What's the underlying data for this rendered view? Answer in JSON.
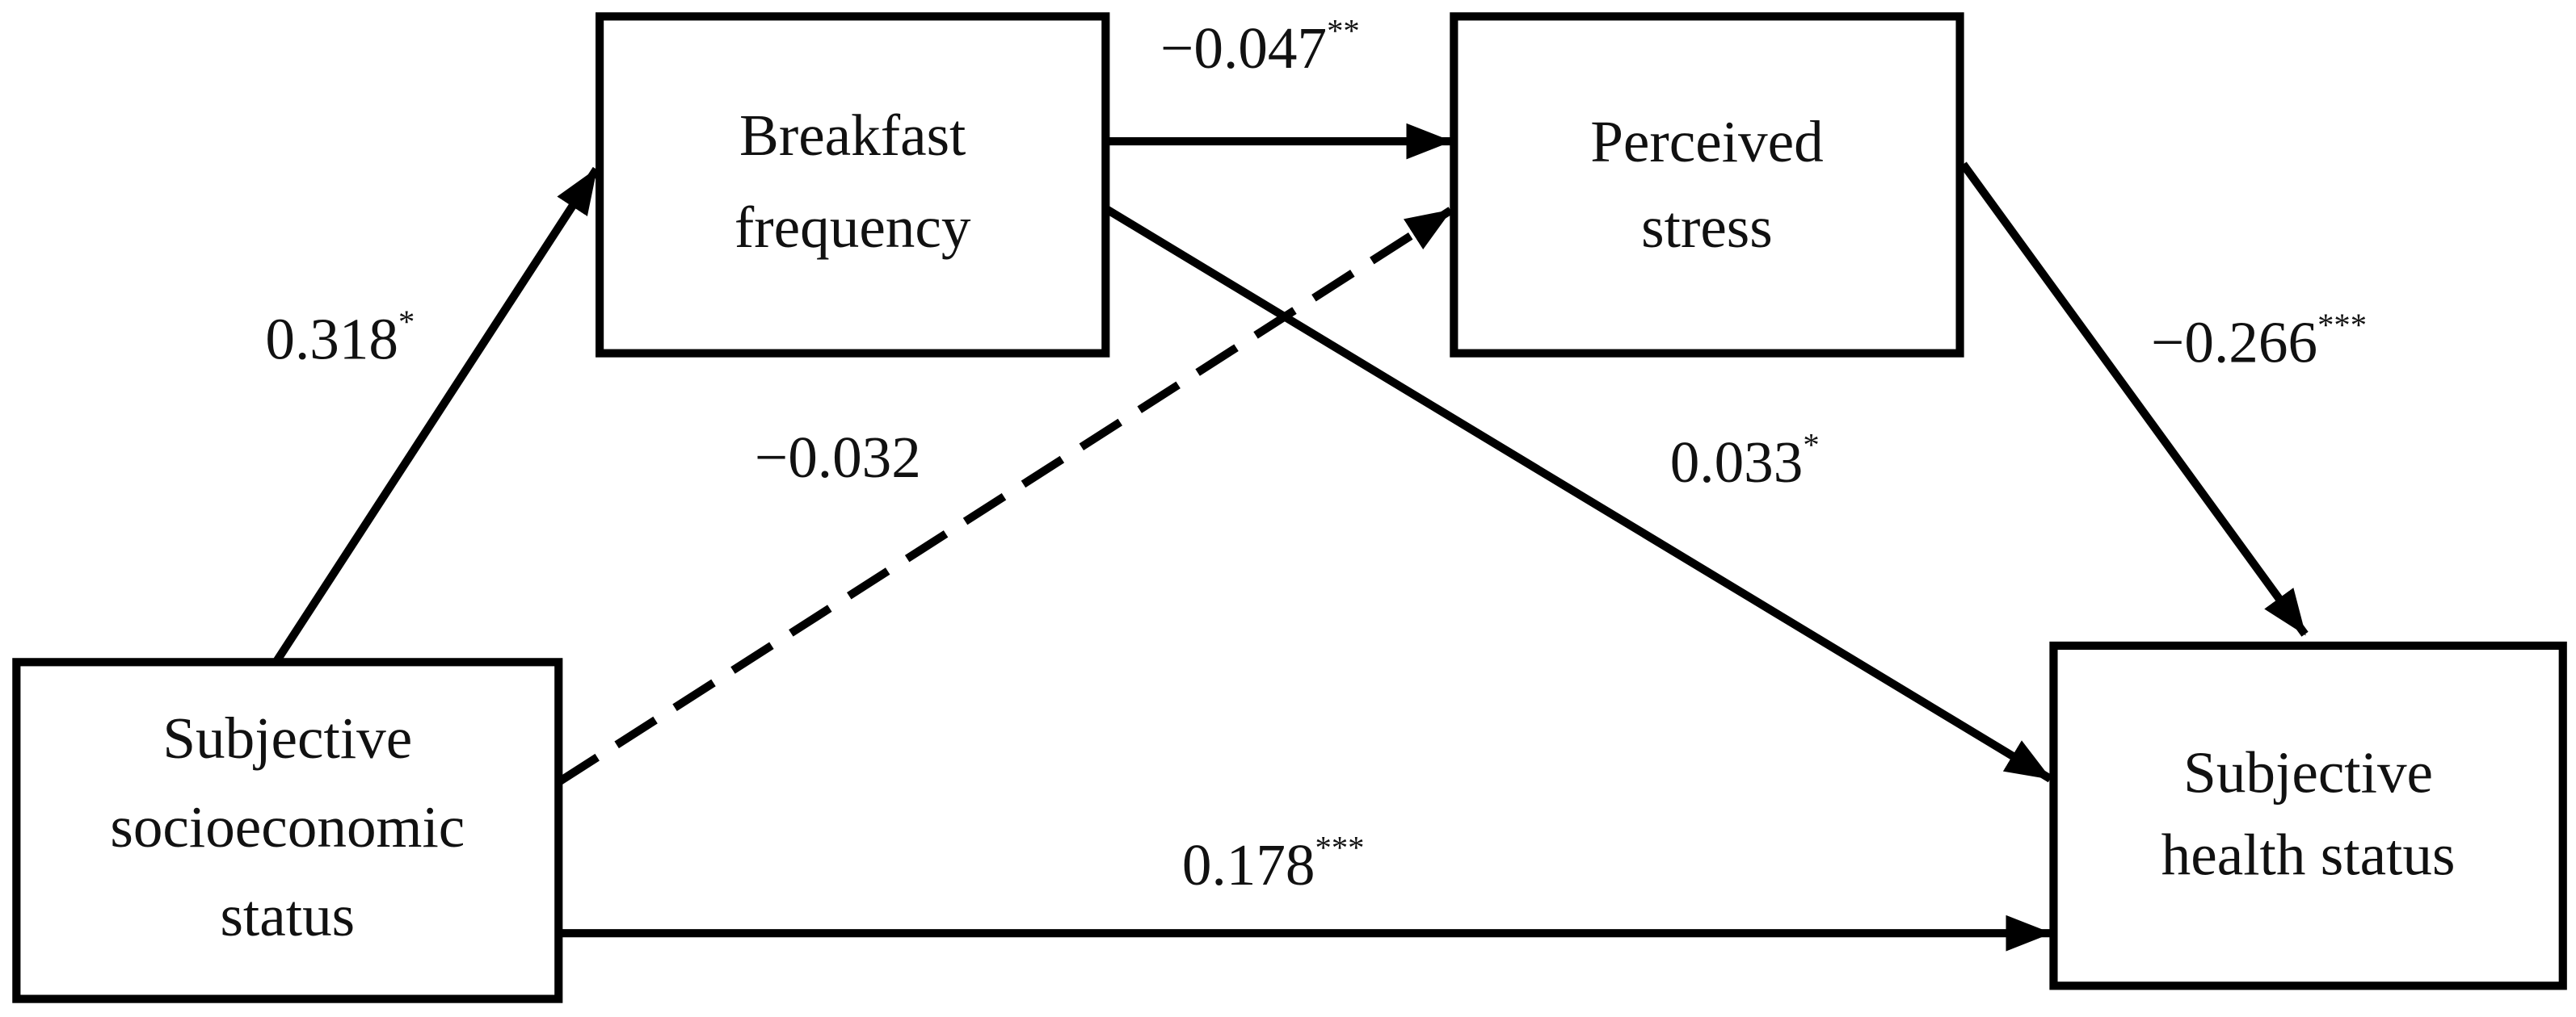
{
  "nodes": [
    {
      "lines": [
        "Subjective",
        "socioeconomic",
        "status"
      ]
    },
    {
      "lines": [
        "Breakfast",
        "frequency"
      ]
    },
    {
      "lines": [
        "Perceived",
        "stress"
      ]
    },
    {
      "lines": [
        "Subjective",
        "health status"
      ]
    }
  ],
  "edges": [
    {
      "coefficient": "0.318",
      "significance": "*"
    },
    {
      "coefficient": "−0.047",
      "significance": "**"
    },
    {
      "coefficient": "−0.032"
    },
    {
      "coefficient": "0.033",
      "significance": "*"
    },
    {
      "coefficient": "−0.266",
      "significance": "***"
    },
    {
      "coefficient": "0.178",
      "significance": "***"
    }
  ]
}
